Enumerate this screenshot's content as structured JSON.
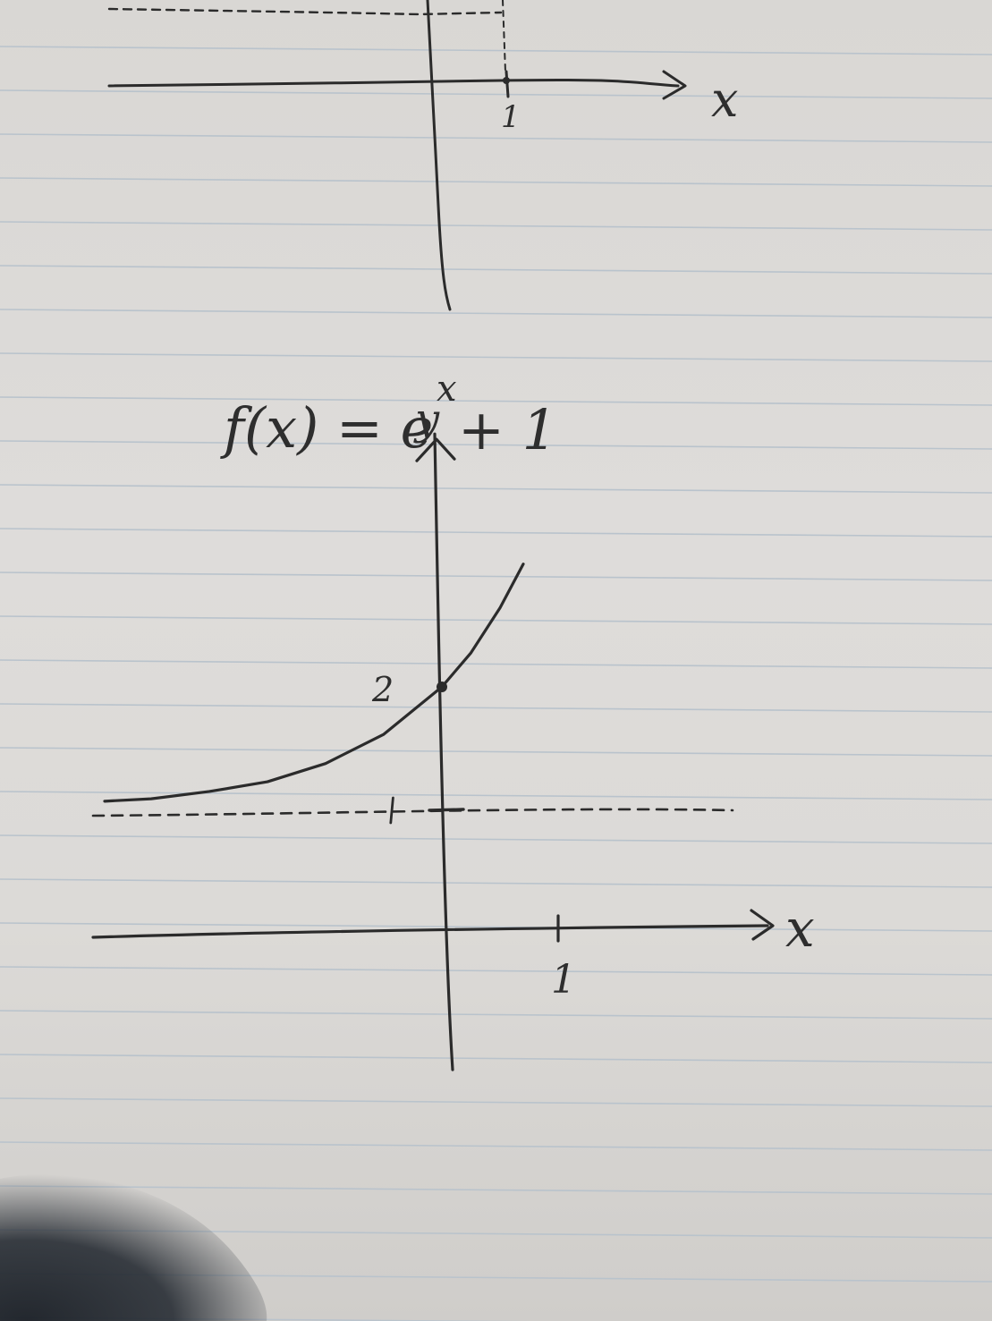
{
  "chart_data": [
    {
      "type": "line",
      "title": "",
      "xlabel": "x",
      "ylabel": "",
      "x_ticks": [
        "1"
      ],
      "y_ticks": [],
      "series": [],
      "asymptote": null
    },
    {
      "type": "line",
      "title": "f(x) = e^x + 1",
      "xlabel": "x",
      "ylabel": "y",
      "x_ticks": [
        "1"
      ],
      "y_ticks": [
        "2"
      ],
      "xlim": [
        -3,
        2.8
      ],
      "ylim": [
        -1,
        4.3
      ],
      "asymptote": {
        "y": 1,
        "style": "dashed"
      },
      "series": [
        {
          "x": [
            -2.9,
            -2.5,
            -2.0,
            -1.5,
            -1.0,
            -0.5,
            0.0,
            0.25,
            0.5,
            0.7
          ],
          "y": [
            1.06,
            1.08,
            1.14,
            1.22,
            1.37,
            1.61,
            2.0,
            2.28,
            2.65,
            3.01
          ]
        }
      ],
      "highlight_point": {
        "x": 0,
        "y": 2
      }
    }
  ],
  "labels": {
    "top_x_axis": "x",
    "top_tick_1": "1",
    "function_f": "f(x) = e",
    "function_exp": "x",
    "function_rest": "+ 1",
    "y_axis": "y",
    "x_axis": "x",
    "tick_x_1": "1",
    "tick_y_2": "2"
  },
  "colors": {
    "ink": "#2b2b2b",
    "paper": "#dcdad7",
    "rule": "#b9c3cc"
  }
}
